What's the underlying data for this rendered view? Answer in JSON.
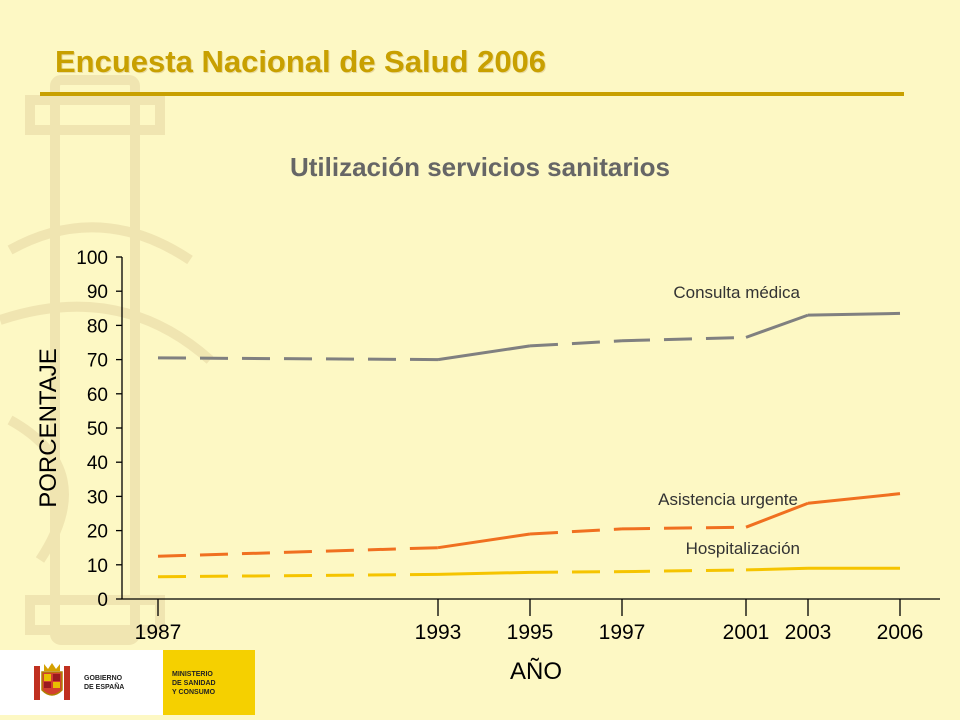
{
  "header": {
    "title": "Encuesta Nacional de Salud 2006"
  },
  "footer": {
    "gobierno": "GOBIERNO\nDE ESPAÑA",
    "ministerio": "MINISTERIO\nDE SANIDAD\nY CONSUMO"
  },
  "colors": {
    "brand_gold": "#c8a000",
    "consulta": "#808080",
    "asistencia": "#f07020",
    "hospitalizacion": "#f5c400",
    "footer_yellow": "#f5d000"
  },
  "chart_data": {
    "type": "line",
    "title": "Utilización servicios sanitarios",
    "xlabel": "AÑO",
    "ylabel": "PORCENTAJE",
    "ylim": [
      0,
      100
    ],
    "yticks": [
      0,
      10,
      20,
      30,
      40,
      50,
      60,
      70,
      80,
      90,
      100
    ],
    "x_ticks": [
      1987,
      1993,
      1995,
      1997,
      2001,
      2003,
      2006
    ],
    "grid": false,
    "legend": "inline labels near line ends",
    "note": "dashed segments indicate interpolation between surveys",
    "series": [
      {
        "name": "Consulta médica",
        "color": "#808080",
        "x": [
          1987,
          1993,
          1995,
          1997,
          2001,
          2003,
          2006
        ],
        "values": [
          70.5,
          70.0,
          74.0,
          75.5,
          76.5,
          83.0,
          83.5
        ],
        "dashed": [
          true,
          false,
          true,
          true,
          false,
          false
        ]
      },
      {
        "name": "Asistencia urgente",
        "color": "#f07020",
        "x": [
          1987,
          1993,
          1995,
          1997,
          2001,
          2003,
          2006
        ],
        "values": [
          12.5,
          15.0,
          19.0,
          20.5,
          21.0,
          28.0,
          30.8
        ],
        "dashed": [
          true,
          false,
          true,
          true,
          false,
          false
        ]
      },
      {
        "name": "Hospitalización",
        "color": "#f5c400",
        "x": [
          1987,
          1993,
          1995,
          1997,
          2001,
          2003,
          2006
        ],
        "values": [
          6.5,
          7.2,
          7.8,
          8.0,
          8.5,
          9.0,
          9.0
        ],
        "dashed": [
          true,
          false,
          true,
          true,
          false,
          false
        ]
      }
    ]
  }
}
